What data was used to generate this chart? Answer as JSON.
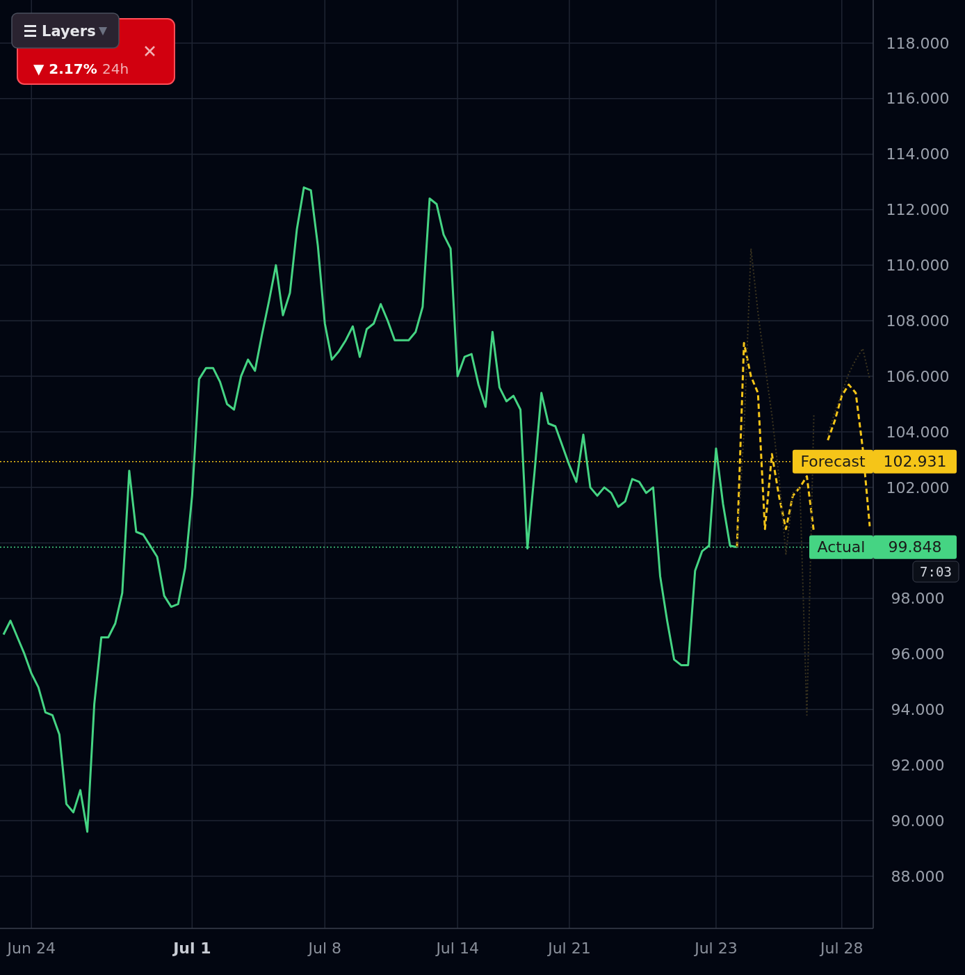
{
  "chart_data": {
    "type": "line",
    "ylim": [
      86.12,
      119.55
    ],
    "categories": [
      null,
      null,
      null,
      null,
      "Jun 24",
      null,
      null,
      null,
      null,
      null,
      null,
      null,
      null,
      null,
      null,
      null,
      null,
      null,
      null,
      null,
      null,
      null,
      null,
      null,
      null,
      null,
      null,
      "Jul 1",
      null,
      null,
      null,
      null,
      null,
      null,
      null,
      null,
      null,
      null,
      null,
      null,
      null,
      null,
      null,
      null,
      null,
      null,
      "Jul 8",
      null,
      null,
      null,
      null,
      null,
      null,
      null,
      null,
      null,
      null,
      null,
      null,
      null,
      null,
      null,
      null,
      null,
      null,
      "Jul 14",
      null,
      null,
      null,
      null,
      null,
      null,
      null,
      null,
      null,
      null,
      null,
      null,
      null,
      null,
      null,
      "Jul 21",
      null,
      null,
      null,
      null,
      null,
      null,
      null,
      null,
      null,
      null,
      null,
      null,
      null,
      null,
      null,
      null,
      null,
      null,
      null,
      null,
      "Jul 23",
      null,
      null,
      null,
      null,
      null,
      null,
      null,
      null,
      null,
      null,
      null,
      null,
      null,
      null,
      null,
      null,
      null,
      "Jul 28",
      null,
      null,
      null,
      null
    ],
    "yticks": [
      {
        "value": 88,
        "label": "88.000"
      },
      {
        "value": 90,
        "label": "90.000"
      },
      {
        "value": 92,
        "label": "92.000"
      },
      {
        "value": 94,
        "label": "94.000"
      },
      {
        "value": 96,
        "label": "96.000"
      },
      {
        "value": 98,
        "label": "98.000"
      },
      {
        "value": 100,
        "label": null
      },
      {
        "value": 102,
        "label": "102.000"
      },
      {
        "value": 104,
        "label": "104.000"
      },
      {
        "value": 106,
        "label": "106.000"
      },
      {
        "value": 108,
        "label": "108.000"
      },
      {
        "value": 110,
        "label": "110.000"
      },
      {
        "value": 112,
        "label": "112.000"
      },
      {
        "value": 114,
        "label": "114.000"
      },
      {
        "value": 116,
        "label": "116.000"
      },
      {
        "value": 118,
        "label": "118.000"
      }
    ],
    "grid": true,
    "series": [
      {
        "color": "#45d483",
        "line_style": "solid",
        "values": [
          96.7,
          97.2,
          96.6,
          96.0,
          95.3,
          94.8,
          93.9,
          93.8,
          93.1,
          90.6,
          90.3,
          91.1,
          89.6,
          94.2,
          96.6,
          96.6,
          97.1,
          98.2,
          102.6,
          100.4,
          100.3,
          99.9,
          99.5,
          98.1,
          97.7,
          97.8,
          99.1,
          101.7,
          105.9,
          106.3,
          106.3,
          105.8,
          105.0,
          104.8,
          106.0,
          106.6,
          106.2,
          107.5,
          108.7,
          110.0,
          108.2,
          109.0,
          111.3,
          112.8,
          112.7,
          110.7,
          107.9,
          106.6,
          106.9,
          107.3,
          107.8,
          106.7,
          107.7,
          107.9,
          108.6,
          108.0,
          107.3,
          107.3,
          107.3,
          107.6,
          108.5,
          112.4,
          112.2,
          111.1,
          110.6,
          106.0,
          106.7,
          106.8,
          105.7,
          104.9,
          107.6,
          105.6,
          105.1,
          105.3,
          104.8,
          99.8,
          102.5,
          105.4,
          104.3,
          104.2,
          103.5,
          102.8,
          102.2,
          103.9,
          102.0,
          101.7,
          102.0,
          101.8,
          101.3,
          101.5,
          102.3,
          102.2,
          101.8,
          102.0,
          98.8,
          97.2,
          95.8,
          95.6,
          95.6,
          99.0,
          99.7,
          99.9,
          103.4,
          101.4,
          99.9,
          99.85,
          null,
          null,
          null,
          null,
          null,
          null,
          null,
          null,
          null,
          null,
          null,
          null,
          null,
          null,
          null,
          null,
          null,
          null,
          null
        ]
      },
      {
        "color": "#f5c518",
        "line_style": "dashed",
        "values": [
          null,
          null,
          null,
          null,
          null,
          null,
          null,
          null,
          null,
          null,
          null,
          null,
          null,
          null,
          null,
          null,
          null,
          null,
          null,
          null,
          null,
          null,
          null,
          null,
          null,
          null,
          null,
          null,
          null,
          null,
          null,
          null,
          null,
          null,
          null,
          null,
          null,
          null,
          null,
          null,
          null,
          null,
          null,
          null,
          null,
          null,
          null,
          null,
          null,
          null,
          null,
          null,
          null,
          null,
          null,
          null,
          null,
          null,
          null,
          null,
          null,
          null,
          null,
          null,
          null,
          null,
          null,
          null,
          null,
          null,
          null,
          null,
          null,
          null,
          null,
          null,
          null,
          null,
          null,
          null,
          null,
          null,
          null,
          null,
          null,
          null,
          null,
          null,
          null,
          null,
          null,
          null,
          null,
          null,
          null,
          null,
          null,
          null,
          null,
          null,
          null,
          null,
          null,
          null,
          null,
          99.85,
          107.2,
          106.0,
          105.4,
          100.5,
          103.2,
          101.7,
          100.5,
          101.7,
          102.0,
          102.4,
          100.4,
          null,
          103.7,
          104.4,
          105.3,
          105.7,
          105.4,
          103.4,
          100.6
        ]
      },
      {
        "color": "#3d3620",
        "line_style": "dotted",
        "values": [
          null,
          null,
          null,
          null,
          null,
          null,
          null,
          null,
          null,
          null,
          null,
          null,
          null,
          null,
          null,
          null,
          null,
          null,
          null,
          null,
          null,
          null,
          null,
          null,
          null,
          null,
          null,
          null,
          null,
          null,
          null,
          null,
          null,
          null,
          null,
          null,
          null,
          null,
          null,
          null,
          null,
          null,
          null,
          null,
          null,
          null,
          null,
          null,
          null,
          null,
          null,
          null,
          null,
          null,
          null,
          null,
          null,
          null,
          null,
          null,
          null,
          null,
          null,
          null,
          null,
          null,
          null,
          null,
          null,
          null,
          null,
          null,
          null,
          null,
          null,
          null,
          null,
          null,
          null,
          null,
          null,
          null,
          null,
          null,
          null,
          null,
          null,
          null,
          null,
          null,
          null,
          null,
          null,
          null,
          null,
          null,
          null,
          null,
          null,
          null,
          null,
          null,
          null,
          null,
          null,
          99.85,
          104.0,
          110.6,
          108.3,
          106.4,
          104.6,
          102.4,
          99.6,
          101.8,
          102.0,
          93.8,
          104.6,
          null,
          103.9,
          104.7,
          105.4,
          106.1,
          106.6,
          107.0,
          105.9
        ]
      }
    ],
    "ref_lines": [
      {
        "axis": "y",
        "value": 102.931,
        "label": "Forecast",
        "color": "#f5c518",
        "line_style": "dotted"
      },
      {
        "axis": "y",
        "value": 99.848,
        "label": "Actual",
        "color": "#45d483",
        "line_style": "dotted"
      }
    ],
    "annotations": [
      "▼ 2.17%",
      "24h",
      "Layers",
      "7:03",
      "102.931",
      "99.848"
    ]
  }
}
